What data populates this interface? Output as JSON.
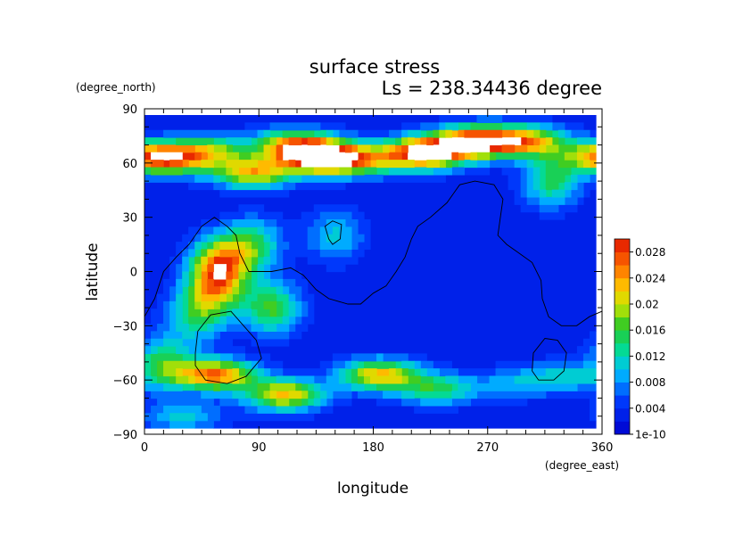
{
  "chart_data": {
    "type": "heatmap",
    "title": "surface stress",
    "subtitle": "Ls = 238.34436 degree",
    "xlabel": "longitude",
    "ylabel": "latitude",
    "x_units": "(degree_east)",
    "y_units": "(degree_north)",
    "xlim": [
      0,
      360
    ],
    "ylim": [
      -90,
      90
    ],
    "x_ticks": [
      "0",
      "90",
      "180",
      "270",
      "360"
    ],
    "y_ticks": [
      "90",
      "60",
      "30",
      "0",
      "−30",
      "−60",
      "−90"
    ],
    "colorbar": {
      "min": 0,
      "max": 0.03,
      "labels": [
        "0.028",
        "0.024",
        "0.02",
        "0.016",
        "0.012",
        "0.008",
        "0.004",
        "1e-10"
      ],
      "label_values": [
        0.028,
        0.024,
        0.02,
        0.016,
        0.012,
        0.008,
        0.004,
        0
      ]
    },
    "grid": false,
    "legend_position": "right",
    "field_peaks": [
      {
        "lon": 20,
        "lat": 62,
        "value": 0.018
      },
      {
        "lon": 50,
        "lat": 67,
        "value": 0.014
      },
      {
        "lon": 85,
        "lat": 55,
        "value": 0.02
      },
      {
        "lon": 140,
        "lat": 63,
        "value": 0.03
      },
      {
        "lon": 118,
        "lat": 70,
        "value": 0.02
      },
      {
        "lon": 175,
        "lat": 62,
        "value": 0.014
      },
      {
        "lon": 222,
        "lat": 66,
        "value": 0.03
      },
      {
        "lon": 260,
        "lat": 72,
        "value": 0.026
      },
      {
        "lon": 300,
        "lat": 72,
        "value": 0.02
      },
      {
        "lon": 320,
        "lat": 50,
        "value": 0.012
      },
      {
        "lon": 355,
        "lat": 64,
        "value": 0.014
      },
      {
        "lon": 60,
        "lat": 5,
        "value": 0.02
      },
      {
        "lon": 55,
        "lat": -10,
        "value": 0.016
      },
      {
        "lon": 85,
        "lat": 15,
        "value": 0.012
      },
      {
        "lon": 100,
        "lat": -20,
        "value": 0.014
      },
      {
        "lon": 40,
        "lat": -25,
        "value": 0.01
      },
      {
        "lon": 150,
        "lat": 20,
        "value": 0.008
      },
      {
        "lon": 55,
        "lat": -57,
        "value": 0.024
      },
      {
        "lon": 110,
        "lat": -68,
        "value": 0.02
      },
      {
        "lon": 185,
        "lat": -57,
        "value": 0.02
      },
      {
        "lon": 230,
        "lat": -65,
        "value": 0.012
      },
      {
        "lon": 15,
        "lat": -50,
        "value": 0.012
      },
      {
        "lon": 30,
        "lat": -80,
        "value": 0.008
      },
      {
        "lon": 330,
        "lat": -58,
        "value": 0.008
      },
      {
        "lon": 290,
        "lat": -62,
        "value": 0.006
      }
    ],
    "coastline_lines": [
      [
        [
          0,
          -25
        ],
        [
          8,
          -15
        ],
        [
          15,
          0
        ],
        [
          25,
          8
        ],
        [
          35,
          15
        ],
        [
          45,
          25
        ],
        [
          55,
          30
        ],
        [
          65,
          25
        ],
        [
          72,
          20
        ],
        [
          75,
          10
        ],
        [
          82,
          0
        ],
        [
          100,
          0
        ],
        [
          115,
          2
        ],
        [
          125,
          -2
        ],
        [
          135,
          -10
        ],
        [
          145,
          -15
        ],
        [
          160,
          -18
        ],
        [
          170,
          -18
        ],
        [
          180,
          -12
        ],
        [
          190,
          -8
        ],
        [
          198,
          0
        ],
        [
          205,
          8
        ],
        [
          210,
          18
        ],
        [
          215,
          25
        ],
        [
          225,
          30
        ],
        [
          238,
          38
        ],
        [
          248,
          48
        ],
        [
          260,
          50
        ],
        [
          275,
          48
        ],
        [
          282,
          40
        ],
        [
          280,
          30
        ],
        [
          278,
          20
        ],
        [
          285,
          15
        ],
        [
          295,
          10
        ],
        [
          305,
          5
        ],
        [
          312,
          -5
        ],
        [
          313,
          -15
        ],
        [
          318,
          -25
        ],
        [
          328,
          -30
        ],
        [
          340,
          -30
        ],
        [
          350,
          -25
        ],
        [
          360,
          -22
        ]
      ],
      [
        [
          40,
          -45
        ],
        [
          42,
          -33
        ],
        [
          52,
          -24
        ],
        [
          68,
          -22
        ],
        [
          78,
          -30
        ],
        [
          88,
          -38
        ],
        [
          92,
          -48
        ],
        [
          80,
          -58
        ],
        [
          65,
          -62
        ],
        [
          48,
          -60
        ],
        [
          40,
          -52
        ],
        [
          40,
          -45
        ]
      ],
      [
        [
          145,
          18
        ],
        [
          142,
          25
        ],
        [
          148,
          28
        ],
        [
          155,
          26
        ],
        [
          154,
          18
        ],
        [
          148,
          15
        ],
        [
          145,
          18
        ]
      ],
      [
        [
          305,
          -55
        ],
        [
          306,
          -45
        ],
        [
          315,
          -37
        ],
        [
          325,
          -38
        ],
        [
          332,
          -45
        ],
        [
          330,
          -55
        ],
        [
          322,
          -60
        ],
        [
          310,
          -60
        ],
        [
          305,
          -55
        ]
      ]
    ]
  }
}
